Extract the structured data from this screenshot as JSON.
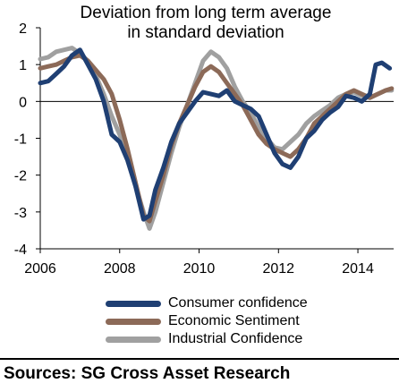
{
  "title_line1": "Deviation  from  long  term  average",
  "title_line2": "in standard  deviation",
  "source": "Sources: SG Cross Asset Research",
  "chart_data": {
    "type": "line",
    "title": "Deviation from long term average in standard deviation",
    "xlim": [
      2006,
      2014.9
    ],
    "ylim": [
      -4,
      2
    ],
    "xticks": [
      2006,
      2008,
      2010,
      2012,
      2014
    ],
    "yticks": [
      2,
      1,
      0,
      -1,
      -2,
      -3,
      -4
    ],
    "grid": false,
    "legend": "bottom",
    "series": [
      {
        "name": "Consumer confidence",
        "color": "#1f3f73",
        "points": [
          [
            2006.0,
            0.5
          ],
          [
            2006.2,
            0.55
          ],
          [
            2006.4,
            0.75
          ],
          [
            2006.6,
            0.95
          ],
          [
            2006.8,
            1.25
          ],
          [
            2007.0,
            1.4
          ],
          [
            2007.2,
            1.0
          ],
          [
            2007.4,
            0.6
          ],
          [
            2007.6,
            0.0
          ],
          [
            2007.8,
            -0.9
          ],
          [
            2008.0,
            -1.1
          ],
          [
            2008.2,
            -1.6
          ],
          [
            2008.4,
            -2.3
          ],
          [
            2008.6,
            -3.2
          ],
          [
            2008.75,
            -3.1
          ],
          [
            2008.9,
            -2.4
          ],
          [
            2009.1,
            -1.8
          ],
          [
            2009.3,
            -1.1
          ],
          [
            2009.5,
            -0.6
          ],
          [
            2009.7,
            -0.3
          ],
          [
            2009.9,
            0.0
          ],
          [
            2010.1,
            0.25
          ],
          [
            2010.3,
            0.2
          ],
          [
            2010.5,
            0.15
          ],
          [
            2010.7,
            0.3
          ],
          [
            2010.9,
            0.0
          ],
          [
            2011.1,
            -0.1
          ],
          [
            2011.3,
            -0.2
          ],
          [
            2011.5,
            -0.4
          ],
          [
            2011.7,
            -0.9
          ],
          [
            2011.9,
            -1.4
          ],
          [
            2012.1,
            -1.7
          ],
          [
            2012.3,
            -1.8
          ],
          [
            2012.5,
            -1.5
          ],
          [
            2012.7,
            -1.0
          ],
          [
            2012.9,
            -0.8
          ],
          [
            2013.1,
            -0.5
          ],
          [
            2013.3,
            -0.3
          ],
          [
            2013.5,
            -0.15
          ],
          [
            2013.7,
            0.15
          ],
          [
            2013.9,
            0.1
          ],
          [
            2014.1,
            0.0
          ],
          [
            2014.3,
            0.2
          ],
          [
            2014.45,
            1.0
          ],
          [
            2014.6,
            1.05
          ],
          [
            2014.8,
            0.9
          ]
        ]
      },
      {
        "name": "Economic Sentiment",
        "color": "#8c6a58",
        "points": [
          [
            2006.0,
            0.9
          ],
          [
            2006.2,
            0.95
          ],
          [
            2006.4,
            1.0
          ],
          [
            2006.6,
            1.1
          ],
          [
            2006.8,
            1.2
          ],
          [
            2007.0,
            1.25
          ],
          [
            2007.2,
            1.1
          ],
          [
            2007.4,
            0.85
          ],
          [
            2007.6,
            0.6
          ],
          [
            2007.8,
            0.2
          ],
          [
            2008.0,
            -0.5
          ],
          [
            2008.2,
            -1.3
          ],
          [
            2008.4,
            -2.2
          ],
          [
            2008.6,
            -3.1
          ],
          [
            2008.75,
            -3.25
          ],
          [
            2008.9,
            -2.7
          ],
          [
            2009.1,
            -2.0
          ],
          [
            2009.3,
            -1.2
          ],
          [
            2009.5,
            -0.6
          ],
          [
            2009.7,
            -0.1
          ],
          [
            2009.9,
            0.4
          ],
          [
            2010.1,
            0.8
          ],
          [
            2010.3,
            0.95
          ],
          [
            2010.5,
            0.8
          ],
          [
            2010.7,
            0.5
          ],
          [
            2010.9,
            0.2
          ],
          [
            2011.1,
            -0.1
          ],
          [
            2011.3,
            -0.5
          ],
          [
            2011.5,
            -0.9
          ],
          [
            2011.7,
            -1.15
          ],
          [
            2011.9,
            -1.3
          ],
          [
            2012.1,
            -1.4
          ],
          [
            2012.3,
            -1.5
          ],
          [
            2012.5,
            -1.3
          ],
          [
            2012.7,
            -1.0
          ],
          [
            2012.9,
            -0.6
          ],
          [
            2013.1,
            -0.4
          ],
          [
            2013.3,
            -0.2
          ],
          [
            2013.5,
            0.0
          ],
          [
            2013.7,
            0.2
          ],
          [
            2013.9,
            0.3
          ],
          [
            2014.1,
            0.2
          ],
          [
            2014.3,
            0.1
          ],
          [
            2014.5,
            0.2
          ],
          [
            2014.7,
            0.3
          ],
          [
            2014.85,
            0.35
          ]
        ]
      },
      {
        "name": "Industrial Confidence",
        "color": "#a0a0a0",
        "points": [
          [
            2006.0,
            1.15
          ],
          [
            2006.2,
            1.2
          ],
          [
            2006.4,
            1.35
          ],
          [
            2006.6,
            1.4
          ],
          [
            2006.8,
            1.45
          ],
          [
            2007.0,
            1.3
          ],
          [
            2007.2,
            1.1
          ],
          [
            2007.4,
            0.7
          ],
          [
            2007.6,
            0.2
          ],
          [
            2007.8,
            -0.4
          ],
          [
            2008.0,
            -0.9
          ],
          [
            2008.2,
            -1.5
          ],
          [
            2008.4,
            -2.3
          ],
          [
            2008.6,
            -3.0
          ],
          [
            2008.75,
            -3.45
          ],
          [
            2008.9,
            -3.0
          ],
          [
            2009.1,
            -2.2
          ],
          [
            2009.3,
            -1.4
          ],
          [
            2009.5,
            -0.7
          ],
          [
            2009.7,
            -0.1
          ],
          [
            2009.9,
            0.5
          ],
          [
            2010.1,
            1.1
          ],
          [
            2010.3,
            1.35
          ],
          [
            2010.5,
            1.2
          ],
          [
            2010.7,
            0.9
          ],
          [
            2010.9,
            0.4
          ],
          [
            2011.1,
            0.0
          ],
          [
            2011.3,
            -0.3
          ],
          [
            2011.5,
            -0.7
          ],
          [
            2011.7,
            -1.0
          ],
          [
            2011.9,
            -1.25
          ],
          [
            2012.1,
            -1.3
          ],
          [
            2012.3,
            -1.1
          ],
          [
            2012.5,
            -0.9
          ],
          [
            2012.7,
            -0.6
          ],
          [
            2012.9,
            -0.4
          ],
          [
            2013.1,
            -0.25
          ],
          [
            2013.3,
            -0.1
          ],
          [
            2013.5,
            0.1
          ],
          [
            2013.7,
            0.2
          ],
          [
            2013.9,
            0.25
          ],
          [
            2014.1,
            0.15
          ],
          [
            2014.3,
            0.1
          ],
          [
            2014.5,
            0.2
          ],
          [
            2014.7,
            0.3
          ],
          [
            2014.85,
            0.3
          ]
        ]
      }
    ]
  }
}
